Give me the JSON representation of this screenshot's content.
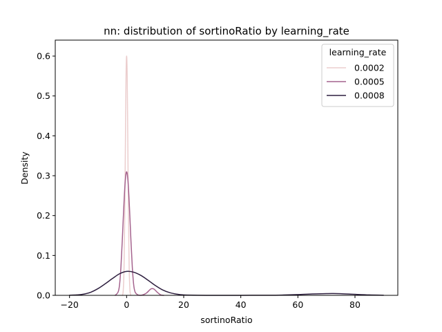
{
  "chart_data": {
    "type": "line",
    "title": "nn: distribution of sortinoRatio by learning_rate",
    "xlabel": "sortinoRatio",
    "ylabel": "Density",
    "xlim": [
      -25,
      95
    ],
    "ylim": [
      0,
      0.64
    ],
    "xticks": [
      -20,
      0,
      20,
      40,
      60,
      80
    ],
    "yticks": [
      0.0,
      0.1,
      0.2,
      0.3,
      0.4,
      0.5,
      0.6
    ],
    "grid": false,
    "legend": {
      "title": "learning_rate",
      "placement": "top-right"
    },
    "series": [
      {
        "name": "0.0002",
        "color": "#ebcdcd",
        "x": [
          -1.5,
          -1.2,
          -0.9,
          -0.6,
          -0.4,
          -0.2,
          0.0,
          0.2,
          0.4,
          0.6,
          0.9,
          1.2,
          1.5
        ],
        "y": [
          0.0,
          0.01,
          0.07,
          0.24,
          0.4,
          0.55,
          0.6,
          0.55,
          0.4,
          0.24,
          0.07,
          0.01,
          0.0
        ]
      },
      {
        "name": "0.0005",
        "color": "#a4628d",
        "x": [
          -4,
          -3,
          -2.5,
          -2,
          -1.5,
          -1,
          -0.5,
          0,
          0.5,
          1,
          1.5,
          2,
          2.5,
          3,
          4,
          5,
          6,
          7,
          8,
          8.5,
          9,
          9.5,
          10,
          11,
          12,
          13
        ],
        "y": [
          0.0,
          0.008,
          0.025,
          0.07,
          0.14,
          0.22,
          0.285,
          0.31,
          0.285,
          0.22,
          0.14,
          0.07,
          0.025,
          0.008,
          0.001,
          0.0,
          0.002,
          0.006,
          0.013,
          0.016,
          0.017,
          0.016,
          0.013,
          0.006,
          0.001,
          0.0
        ]
      },
      {
        "name": "0.0008",
        "color": "#2d1e3e",
        "x": [
          -20,
          -17.5,
          -15,
          -12.5,
          -10,
          -7.5,
          -5,
          -2.5,
          0,
          2.5,
          5,
          7.5,
          10,
          12.5,
          15,
          17.5,
          20,
          25,
          30,
          40,
          50,
          55,
          60,
          65,
          70,
          72,
          75,
          80,
          85,
          90
        ],
        "y": [
          0.0003,
          0.001,
          0.003,
          0.008,
          0.017,
          0.029,
          0.042,
          0.054,
          0.06,
          0.058,
          0.05,
          0.038,
          0.025,
          0.014,
          0.007,
          0.003,
          0.001,
          0.0002,
          0.0001,
          0.0001,
          0.0002,
          0.0008,
          0.002,
          0.0035,
          0.0043,
          0.0045,
          0.0042,
          0.0025,
          0.001,
          0.0003
        ]
      }
    ]
  }
}
